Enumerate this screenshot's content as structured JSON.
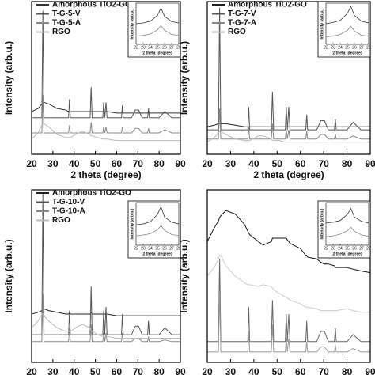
{
  "chart_data": [
    {
      "type": "line",
      "xlabel": "2 theta (degree)",
      "ylabel": "Intensity (arb.u.)",
      "xlim": [
        20,
        90
      ],
      "xticks": [
        20,
        30,
        40,
        50,
        60,
        70,
        80,
        90
      ],
      "ylim": [
        0,
        100
      ],
      "legend": "upper left",
      "x": [
        20,
        23,
        24.8,
        25.3,
        25.8,
        28,
        32,
        36,
        37.4,
        37.8,
        38.2,
        42,
        44,
        47.5,
        48,
        48.5,
        51,
        53.5,
        53.9,
        54.4,
        55,
        55.5,
        60,
        62.3,
        62.7,
        63.1,
        67,
        68.8,
        70.3,
        72,
        74.6,
        75,
        75.4,
        80,
        82.7,
        86,
        90
      ],
      "series": [
        {
          "name": "Amorphous TiO2-GO",
          "color": "#333333",
          "values": [
            28,
            30,
            33,
            34,
            34,
            33,
            30,
            29,
            28,
            28,
            28,
            28,
            28,
            28,
            28,
            28,
            28,
            28,
            28,
            28,
            28,
            28,
            27,
            27,
            27,
            27,
            27,
            27,
            27,
            27,
            27,
            27,
            27,
            27,
            27,
            27,
            27
          ]
        },
        {
          "name": "T-G-5-V",
          "color": "#555555",
          "values": [
            24,
            24,
            24,
            94,
            24,
            24,
            24,
            24,
            24,
            36,
            24,
            24,
            24,
            24,
            44,
            24,
            24,
            24,
            34,
            24,
            34,
            24,
            24,
            24,
            32,
            24,
            24,
            29,
            29,
            24,
            24,
            30,
            24,
            24,
            28,
            24,
            24
          ]
        },
        {
          "name": "T-G-5-A",
          "color": "#888888",
          "values": [
            14,
            14,
            14,
            39,
            14,
            14,
            14,
            14,
            14,
            19,
            14,
            14,
            14,
            14,
            21,
            14,
            14,
            14,
            18,
            14,
            18,
            14,
            14,
            14,
            18,
            14,
            14,
            17,
            17,
            14,
            14,
            17,
            14,
            14,
            16,
            14,
            14
          ]
        },
        {
          "name": "RGO",
          "color": "#bbbbbb",
          "values": [
            10,
            14,
            19,
            20,
            20,
            18,
            13,
            11,
            11,
            11,
            11,
            14,
            15,
            13,
            12,
            12,
            11,
            10,
            10,
            10,
            10,
            10,
            9,
            9,
            9,
            9,
            9,
            9,
            9,
            9,
            9,
            9,
            9,
            9,
            9,
            9,
            9
          ]
        }
      ],
      "inset": {
        "xlabel": "2 theta (degree)",
        "ylabel": "Intensity (arb.u.)",
        "xlim": [
          22,
          28
        ],
        "xticks": [
          22,
          23,
          24,
          25,
          26,
          27,
          28
        ],
        "ylim": [
          0,
          100
        ],
        "x": [
          22,
          23,
          24,
          25,
          25.5,
          26,
          27,
          28
        ],
        "series": [
          {
            "color": "#333333",
            "values": [
              50,
              52,
              56,
              70,
              88,
              68,
              55,
              52
            ]
          },
          {
            "color": "#888888",
            "values": [
              20,
              22,
              25,
              35,
              45,
              34,
              24,
              22
            ]
          }
        ]
      }
    },
    {
      "type": "line",
      "xlabel": "2 theta (degree)",
      "ylabel": "Intensity (arb.u.)",
      "xlim": [
        20,
        90
      ],
      "xticks": [
        20,
        30,
        40,
        50,
        60,
        70,
        80,
        90
      ],
      "ylim": [
        0,
        100
      ],
      "legend": "upper left",
      "x": [
        20,
        23,
        24.8,
        25.3,
        25.8,
        28,
        32,
        36,
        37.4,
        37.8,
        38.2,
        42,
        44,
        47.5,
        48,
        48.5,
        51,
        53.5,
        53.9,
        54.4,
        55,
        55.5,
        60,
        62.3,
        62.7,
        63.1,
        67,
        68.8,
        70.3,
        72,
        74.6,
        75,
        75.4,
        80,
        82.7,
        86,
        90
      ],
      "series": [
        {
          "name": "Amorphous TiO2-GO",
          "color": "#222222",
          "values": [
            18,
            19,
            20,
            20,
            20,
            20,
            19,
            18,
            18,
            18,
            18,
            18,
            18,
            18,
            18,
            18,
            18,
            18,
            18,
            18,
            18,
            18,
            18,
            18,
            18,
            18,
            18,
            18,
            18,
            18,
            18,
            18,
            18,
            18,
            18,
            18,
            18
          ]
        },
        {
          "name": "T-G-7-V",
          "color": "#555555",
          "values": [
            16,
            16,
            16,
            96,
            16,
            16,
            16,
            16,
            16,
            31,
            16,
            16,
            16,
            16,
            41,
            16,
            16,
            16,
            31,
            16,
            31,
            16,
            16,
            16,
            26,
            16,
            16,
            22,
            22,
            16,
            16,
            23,
            16,
            16,
            21,
            16,
            16
          ]
        },
        {
          "name": "T-G-7-A",
          "color": "#888888",
          "values": [
            10,
            10,
            10,
            30,
            10,
            10,
            10,
            10,
            10,
            18,
            10,
            10,
            10,
            10,
            20,
            10,
            10,
            10,
            16,
            10,
            16,
            10,
            10,
            10,
            15,
            10,
            10,
            13,
            13,
            10,
            10,
            13,
            10,
            10,
            12,
            10,
            10
          ]
        },
        {
          "name": "RGO",
          "color": "#bbbbbb",
          "values": [
            8,
            11,
            14,
            15,
            15,
            13,
            10,
            9,
            9,
            9,
            9,
            12,
            12,
            10,
            9,
            9,
            9,
            8,
            8,
            8,
            8,
            8,
            8,
            8,
            8,
            8,
            8,
            8,
            8,
            8,
            8,
            8,
            8,
            8,
            8,
            8,
            8
          ]
        }
      ],
      "inset": {
        "xlabel": "2 theta (degree)",
        "ylabel": "Intensity (arb.u.)",
        "xlim": [
          22,
          28
        ],
        "xticks": [
          22,
          23,
          24,
          25,
          26,
          27,
          28
        ],
        "ylim": [
          0,
          100
        ],
        "x": [
          22,
          23,
          24,
          25,
          25.5,
          26,
          27,
          28
        ],
        "series": [
          {
            "color": "#333333",
            "values": [
              50,
              53,
              58,
              75,
              92,
              70,
              56,
              52
            ]
          },
          {
            "color": "#888888",
            "values": [
              18,
              20,
              24,
              34,
              44,
              32,
              22,
              20
            ]
          }
        ]
      }
    },
    {
      "type": "line",
      "xlabel": "2 theta (degree)",
      "ylabel": "Intensity (arb.u.)",
      "xlim": [
        20,
        90
      ],
      "xticks": [
        20,
        30,
        40,
        50,
        60,
        70,
        80,
        90
      ],
      "ylim": [
        0,
        100
      ],
      "legend": "upper left",
      "x": [
        20,
        23,
        24.8,
        25.3,
        25.8,
        28,
        32,
        36,
        37.4,
        37.8,
        38.2,
        42,
        44,
        47.5,
        48,
        48.5,
        51,
        53.5,
        53.9,
        54.4,
        55,
        55.5,
        60,
        62.3,
        62.7,
        63.1,
        67,
        68.8,
        70.3,
        72,
        74.6,
        75,
        75.4,
        80,
        82.7,
        86,
        90
      ],
      "series": [
        {
          "name": "Amorphous TiO2-GO",
          "color": "#222222",
          "values": [
            28,
            29,
            30,
            31,
            31,
            30,
            29,
            28,
            28,
            29,
            28,
            28,
            28,
            28,
            29,
            28,
            28,
            28,
            28,
            28,
            28,
            28,
            27,
            27,
            27,
            27,
            27,
            27,
            27,
            27,
            27,
            27,
            27,
            27,
            27,
            27,
            27
          ]
        },
        {
          "name": "T-G-10-V",
          "color": "#555555",
          "values": [
            16,
            16,
            16,
            98,
            16,
            16,
            16,
            16,
            16,
            30,
            16,
            16,
            16,
            16,
            44,
            16,
            16,
            16,
            30,
            16,
            32,
            16,
            16,
            16,
            28,
            16,
            16,
            21,
            21,
            16,
            16,
            24,
            16,
            16,
            20,
            16,
            16
          ]
        },
        {
          "name": "T-G-10-A",
          "color": "#888888",
          "values": [
            12,
            12,
            12,
            40,
            12,
            12,
            12,
            12,
            12,
            20,
            12,
            12,
            12,
            12,
            22,
            12,
            12,
            12,
            17,
            12,
            17,
            12,
            12,
            12,
            17,
            12,
            12,
            14,
            14,
            12,
            12,
            15,
            12,
            12,
            13,
            12,
            12
          ]
        },
        {
          "name": "RGO",
          "color": "#bbbbbb",
          "values": [
            20,
            24,
            28,
            28,
            27,
            24,
            20,
            18,
            18,
            18,
            18,
            21,
            22,
            20,
            18,
            18,
            16,
            15,
            15,
            15,
            15,
            15,
            14,
            14,
            14,
            14,
            14,
            14,
            14,
            14,
            14,
            14,
            14,
            14,
            14,
            14,
            14
          ]
        }
      ],
      "inset": {
        "xlabel": "2 theta (degree)",
        "ylabel": "Intensity (arb.u.)",
        "xlim": [
          22,
          28
        ],
        "xticks": [
          22,
          23,
          24,
          25,
          26,
          27,
          28
        ],
        "ylim": [
          0,
          100
        ],
        "x": [
          22,
          23,
          24,
          25,
          25.5,
          26,
          27,
          28
        ],
        "series": [
          {
            "color": "#333333",
            "values": [
              48,
              50,
              55,
              72,
              90,
              66,
              54,
              50
            ]
          },
          {
            "color": "#888888",
            "values": [
              22,
              24,
              27,
              36,
              46,
              35,
              25,
              23
            ]
          }
        ]
      }
    },
    {
      "type": "line",
      "xlabel": "2 theta (degree)",
      "ylabel": "Intensity (arb.u.)",
      "xlim": [
        20,
        90
      ],
      "xticks": [
        20,
        30,
        40,
        50,
        60,
        70,
        80,
        90
      ],
      "ylim": [
        0,
        100
      ],
      "x": [
        20,
        23,
        24.8,
        25.3,
        25.8,
        28,
        32,
        36,
        37.4,
        37.8,
        38.2,
        42,
        44,
        47.5,
        48,
        48.5,
        51,
        53.5,
        53.9,
        54.4,
        55,
        55.5,
        60,
        62.3,
        62.7,
        63.1,
        67,
        68.8,
        70.3,
        72,
        74.6,
        75,
        75.4,
        80,
        82.7,
        86,
        90
      ],
      "series": [
        {
          "color": "#111111",
          "values": [
            70,
            78,
            82,
            84,
            85,
            88,
            86,
            80,
            76,
            75,
            74,
            70,
            68,
            70,
            72,
            72,
            72,
            72,
            72,
            71,
            70,
            69,
            66,
            62,
            62,
            61,
            60,
            58,
            57,
            57,
            56,
            55,
            55,
            55,
            54,
            53,
            52
          ]
        },
        {
          "color": "#cccccc",
          "values": [
            50,
            55,
            60,
            62,
            62,
            56,
            50,
            46,
            45,
            45,
            45,
            44,
            45,
            44,
            43,
            42,
            40,
            38,
            38,
            37,
            37,
            36,
            34,
            32,
            32,
            32,
            31,
            30,
            30,
            30,
            30,
            30,
            30,
            31,
            30,
            29,
            29
          ]
        },
        {
          "color": "#666666",
          "values": [
            12,
            12,
            12,
            60,
            12,
            12,
            12,
            12,
            12,
            32,
            12,
            12,
            12,
            12,
            36,
            12,
            12,
            12,
            28,
            12,
            28,
            12,
            12,
            12,
            24,
            12,
            12,
            18,
            18,
            12,
            12,
            20,
            12,
            12,
            16,
            12,
            12
          ]
        },
        {
          "color": "#999999",
          "values": [
            6,
            6,
            6,
            40,
            6,
            6,
            6,
            6,
            6,
            18,
            6,
            6,
            6,
            6,
            22,
            6,
            6,
            6,
            14,
            6,
            14,
            6,
            6,
            6,
            12,
            6,
            6,
            9,
            9,
            6,
            6,
            10,
            6,
            6,
            8,
            6,
            6
          ]
        }
      ],
      "inset": {
        "xlabel": "2 theta (degree)",
        "ylabel": "Intensity (arb.u.)",
        "xlim": [
          22,
          28
        ],
        "xticks": [
          22,
          23,
          24,
          25,
          26,
          27,
          28
        ],
        "ylim": [
          0,
          100
        ],
        "x": [
          22,
          23,
          24,
          25,
          25.5,
          26,
          27,
          28
        ],
        "series": [
          {
            "color": "#333333",
            "values": [
              52,
              54,
              58,
              72,
              86,
              66,
              56,
              52
            ]
          },
          {
            "color": "#888888",
            "values": [
              20,
              22,
              26,
              34,
              42,
              33,
              24,
              21
            ]
          }
        ]
      }
    }
  ]
}
